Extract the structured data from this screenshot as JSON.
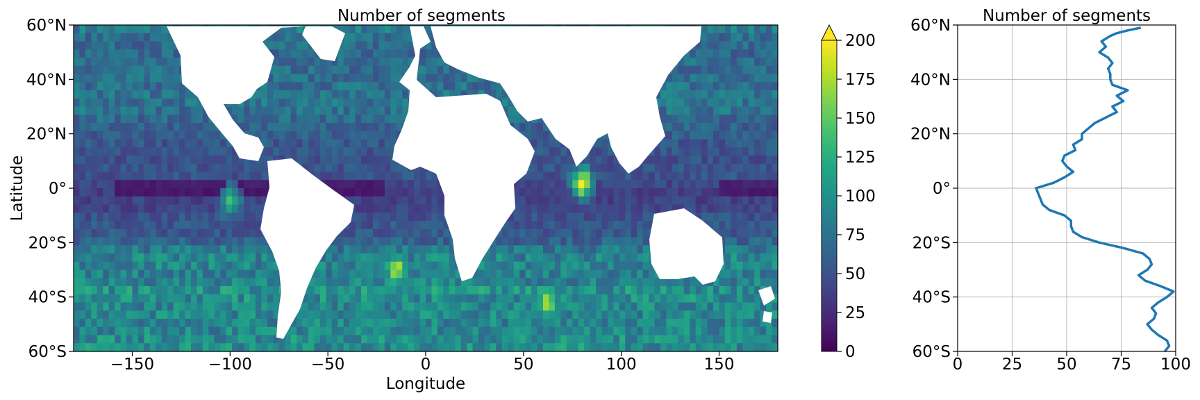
{
  "chart_data": [
    {
      "type": "heatmap",
      "title": "Number of segments",
      "xlabel": "Longitude",
      "ylabel": "Latitude",
      "xlim": [
        -180,
        180
      ],
      "ylim": [
        -60,
        60
      ],
      "xticks": [
        -150,
        -100,
        -50,
        0,
        50,
        100,
        150
      ],
      "xtick_labels": [
        "−150",
        "−100",
        "−50",
        "0",
        "50",
        "100",
        "150"
      ],
      "yticks": [
        60,
        40,
        20,
        0,
        -20,
        -40,
        -60
      ],
      "ytick_labels": [
        "60°N",
        "40°N",
        "20°N",
        "0°",
        "20°S",
        "40°S",
        "60°S"
      ],
      "colormap": "viridis",
      "over_color": "#fde725",
      "colorbar": {
        "vmin": 0,
        "vmax": 200,
        "extend": "max",
        "ticks": [
          0,
          25,
          50,
          75,
          100,
          125,
          150,
          175,
          200
        ],
        "tick_labels": [
          "0",
          "25",
          "50",
          "75",
          "100",
          "125",
          "150",
          "175",
          "200"
        ]
      },
      "land_color": "#ffffff",
      "grid": false,
      "hotspots": [
        {
          "lon": 80,
          "lat": 2,
          "value": 195
        },
        {
          "lon": -15,
          "lat": -30,
          "value": 185
        },
        {
          "lon": 62,
          "lat": -42,
          "value": 180
        },
        {
          "lon": -100,
          "lat": -5,
          "value": 130
        }
      ]
    },
    {
      "type": "line",
      "title": "Number of segments",
      "xlabel": "",
      "ylabel": "",
      "xlim": [
        0,
        100
      ],
      "ylim": [
        -60,
        60
      ],
      "xticks": [
        0,
        25,
        50,
        75,
        100
      ],
      "xtick_labels": [
        "0",
        "25",
        "50",
        "75",
        "100"
      ],
      "yticks": [
        60,
        40,
        20,
        0,
        -20,
        -40,
        -60
      ],
      "ytick_labels": [
        "60°N",
        "40°N",
        "20°N",
        "0°",
        "20°S",
        "40°S",
        "60°S"
      ],
      "grid": true,
      "line_color": "#1f77b4",
      "series": [
        {
          "x": [
            95,
            97,
            96,
            92,
            89,
            87,
            90,
            91,
            89,
            92,
            96,
            99,
            93,
            86,
            83,
            87,
            89,
            88,
            85,
            76,
            65,
            57,
            53,
            52,
            52,
            49,
            42,
            39,
            38,
            36,
            44,
            49,
            53,
            50,
            48,
            49,
            54,
            53,
            57,
            57,
            60,
            63,
            68,
            73,
            71,
            76,
            73,
            78,
            71,
            70,
            70,
            69,
            71,
            69,
            65,
            68,
            66,
            70,
            73,
            78,
            84
          ],
          "y": [
            -60,
            -58,
            -56,
            -54,
            -52,
            -50,
            -48,
            -46,
            -44,
            -42,
            -40,
            -38,
            -36,
            -34,
            -32,
            -30,
            -28,
            -26,
            -24,
            -22,
            -20,
            -18,
            -16,
            -14,
            -12,
            -10,
            -8,
            -6,
            -4,
            0,
            2,
            4,
            6,
            8,
            10,
            12,
            14,
            16,
            18,
            20,
            22,
            24,
            26,
            28,
            30,
            32,
            34,
            36,
            38,
            40,
            42,
            44,
            46,
            48,
            50,
            52,
            54,
            56,
            57,
            58,
            59
          ]
        }
      ]
    }
  ]
}
